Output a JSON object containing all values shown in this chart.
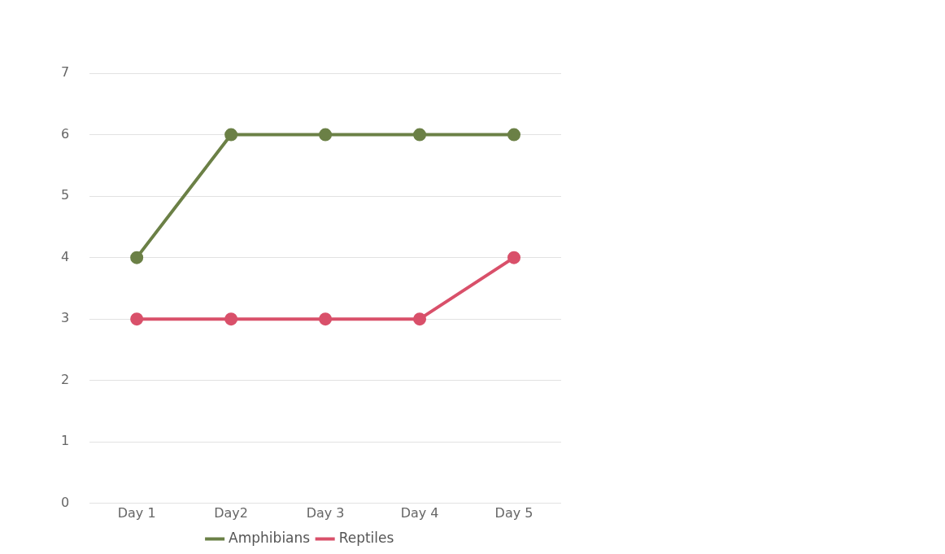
{
  "chart_data": {
    "type": "line",
    "categories": [
      "Day 1",
      "Day2",
      "Day 3",
      "Day 4",
      "Day 5"
    ],
    "series": [
      {
        "name": "Amphibians",
        "color": "#6b8046",
        "values": [
          4,
          6,
          6,
          6,
          6
        ]
      },
      {
        "name": "Reptiles",
        "color": "#d9506a",
        "values": [
          3,
          3,
          3,
          3,
          4
        ]
      }
    ],
    "ylim": [
      0,
      7
    ],
    "yticks": [
      0,
      1,
      2,
      3,
      4,
      5,
      6,
      7
    ],
    "grid": "y",
    "legend": "bottom",
    "marker": "circle",
    "line_style": "solid"
  }
}
